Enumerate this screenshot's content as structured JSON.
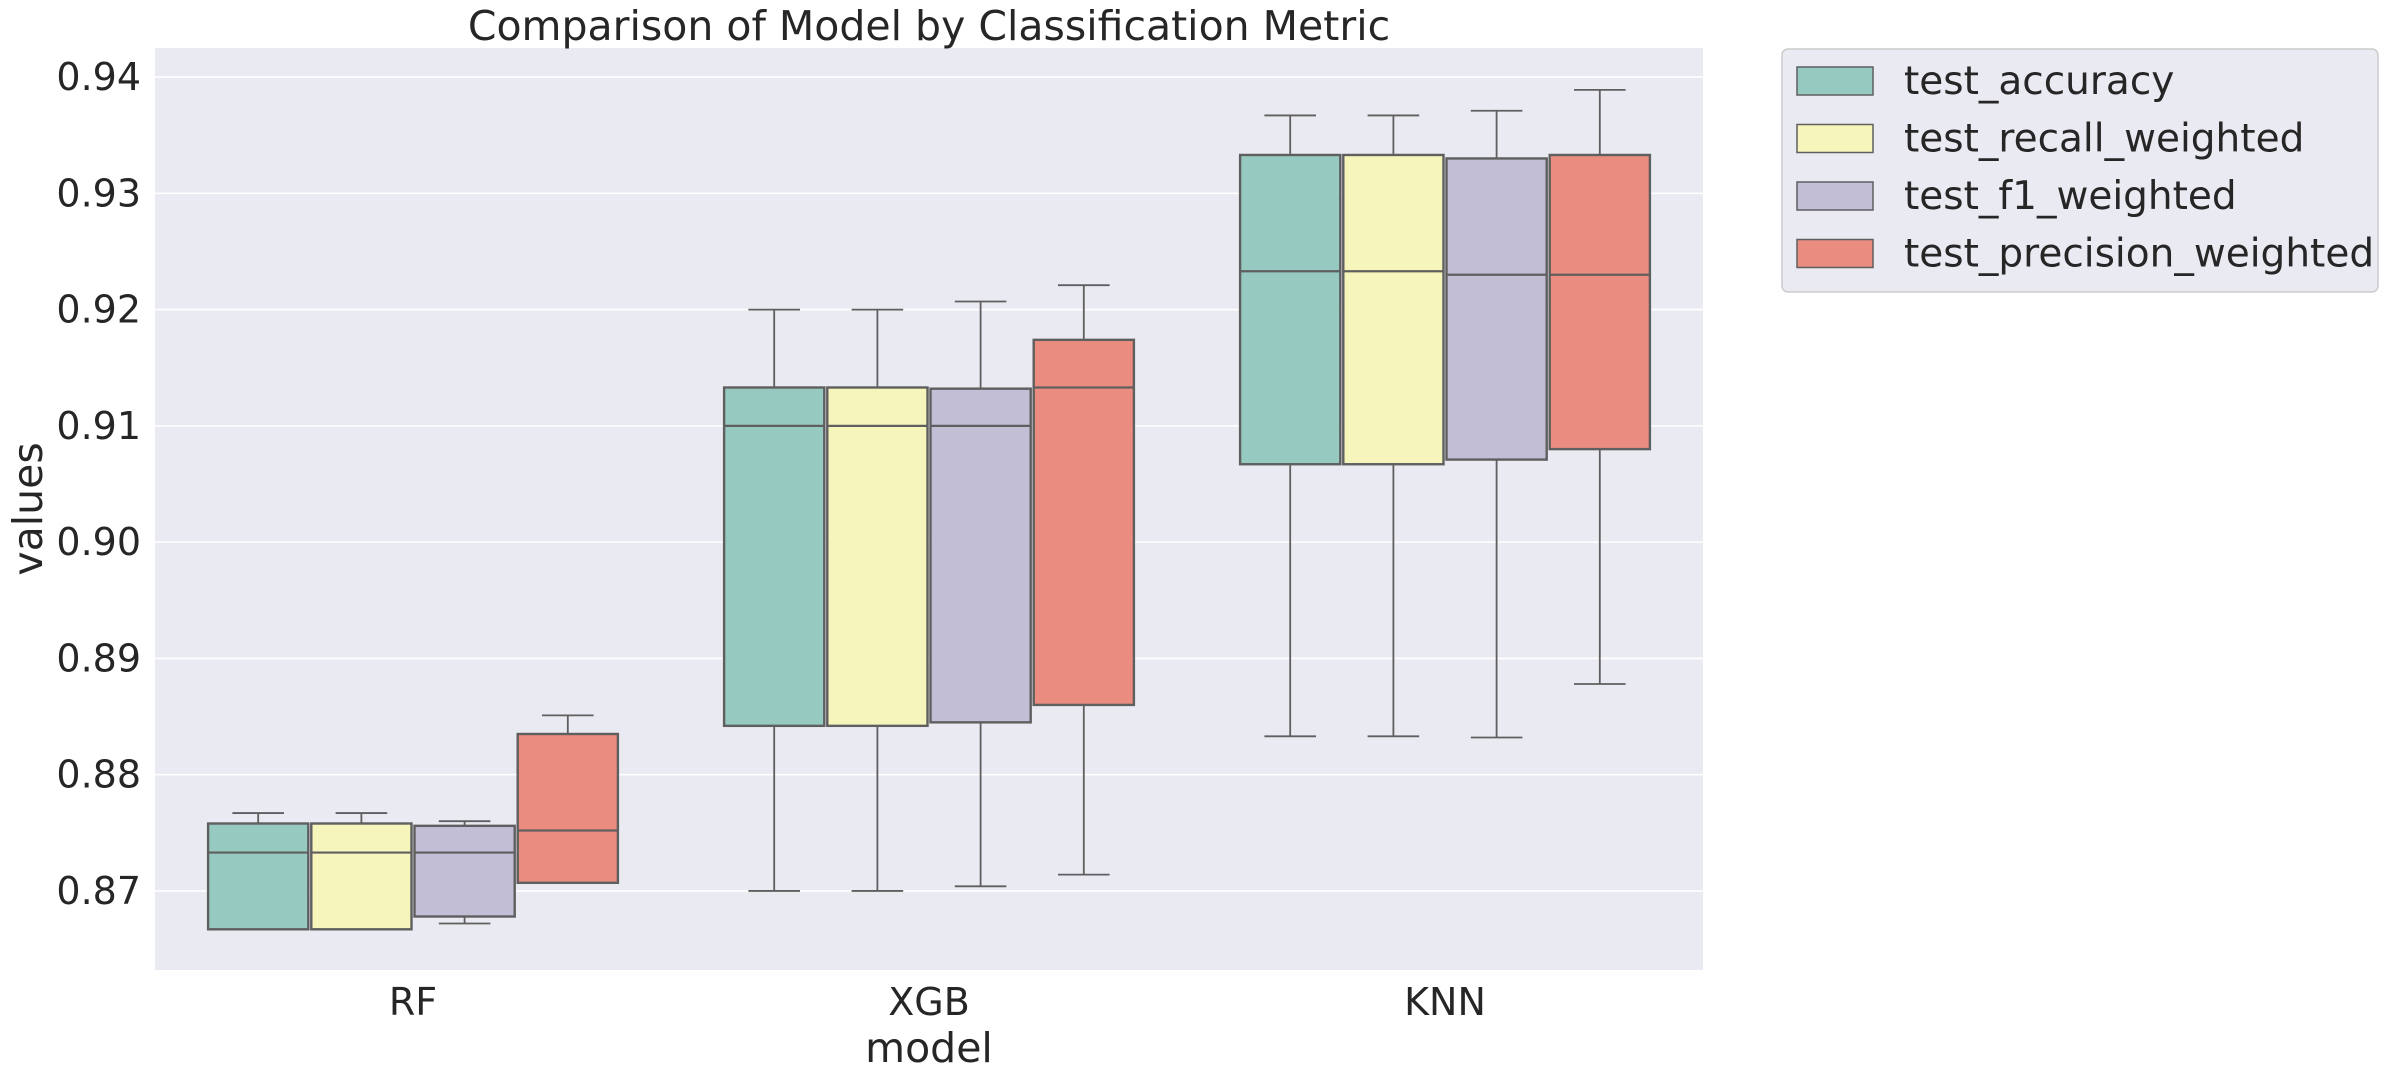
{
  "chart_data": {
    "type": "box",
    "title": "Comparison of Model by Classification Metric",
    "xlabel": "model",
    "ylabel": "values",
    "ylim": [
      0.8632,
      0.9425
    ],
    "yticks": [
      "0.87",
      "0.88",
      "0.89",
      "0.90",
      "0.91",
      "0.92",
      "0.93",
      "0.94"
    ],
    "grid": true,
    "legend_position": "outside-top-right",
    "categories": [
      "RF",
      "XGB",
      "KNN"
    ],
    "series": [
      {
        "name": "test_accuracy",
        "color": "#96cac1",
        "boxes": [
          {
            "whisker_low": 0.8667,
            "q1": 0.8667,
            "median": 0.8733,
            "q3": 0.8758,
            "whisker_high": 0.8767
          },
          {
            "whisker_low": 0.87,
            "q1": 0.8842,
            "median": 0.91,
            "q3": 0.9133,
            "whisker_high": 0.92
          },
          {
            "whisker_low": 0.8833,
            "q1": 0.9067,
            "median": 0.9233,
            "q3": 0.9333,
            "whisker_high": 0.9367
          }
        ]
      },
      {
        "name": "test_recall_weighted",
        "color": "#f6f6bc",
        "boxes": [
          {
            "whisker_low": 0.8667,
            "q1": 0.8667,
            "median": 0.8733,
            "q3": 0.8758,
            "whisker_high": 0.8767
          },
          {
            "whisker_low": 0.87,
            "q1": 0.8842,
            "median": 0.91,
            "q3": 0.9133,
            "whisker_high": 0.92
          },
          {
            "whisker_low": 0.8833,
            "q1": 0.9067,
            "median": 0.9233,
            "q3": 0.9333,
            "whisker_high": 0.9367
          }
        ]
      },
      {
        "name": "test_f1_weighted",
        "color": "#c1bed6",
        "boxes": [
          {
            "whisker_low": 0.8672,
            "q1": 0.8678,
            "median": 0.8733,
            "q3": 0.8756,
            "whisker_high": 0.876
          },
          {
            "whisker_low": 0.8704,
            "q1": 0.8845,
            "median": 0.91,
            "q3": 0.9132,
            "whisker_high": 0.9207
          },
          {
            "whisker_low": 0.8832,
            "q1": 0.9071,
            "median": 0.923,
            "q3": 0.933,
            "whisker_high": 0.9371
          }
        ]
      },
      {
        "name": "test_precision_weighted",
        "color": "#ea8c80",
        "boxes": [
          {
            "whisker_low": 0.8707,
            "q1": 0.8707,
            "median": 0.8752,
            "q3": 0.8835,
            "whisker_high": 0.8851
          },
          {
            "whisker_low": 0.8714,
            "q1": 0.886,
            "median": 0.9133,
            "q3": 0.9174,
            "whisker_high": 0.9221
          },
          {
            "whisker_low": 0.8878,
            "q1": 0.908,
            "median": 0.923,
            "q3": 0.9333,
            "whisker_high": 0.9389
          }
        ]
      }
    ]
  }
}
